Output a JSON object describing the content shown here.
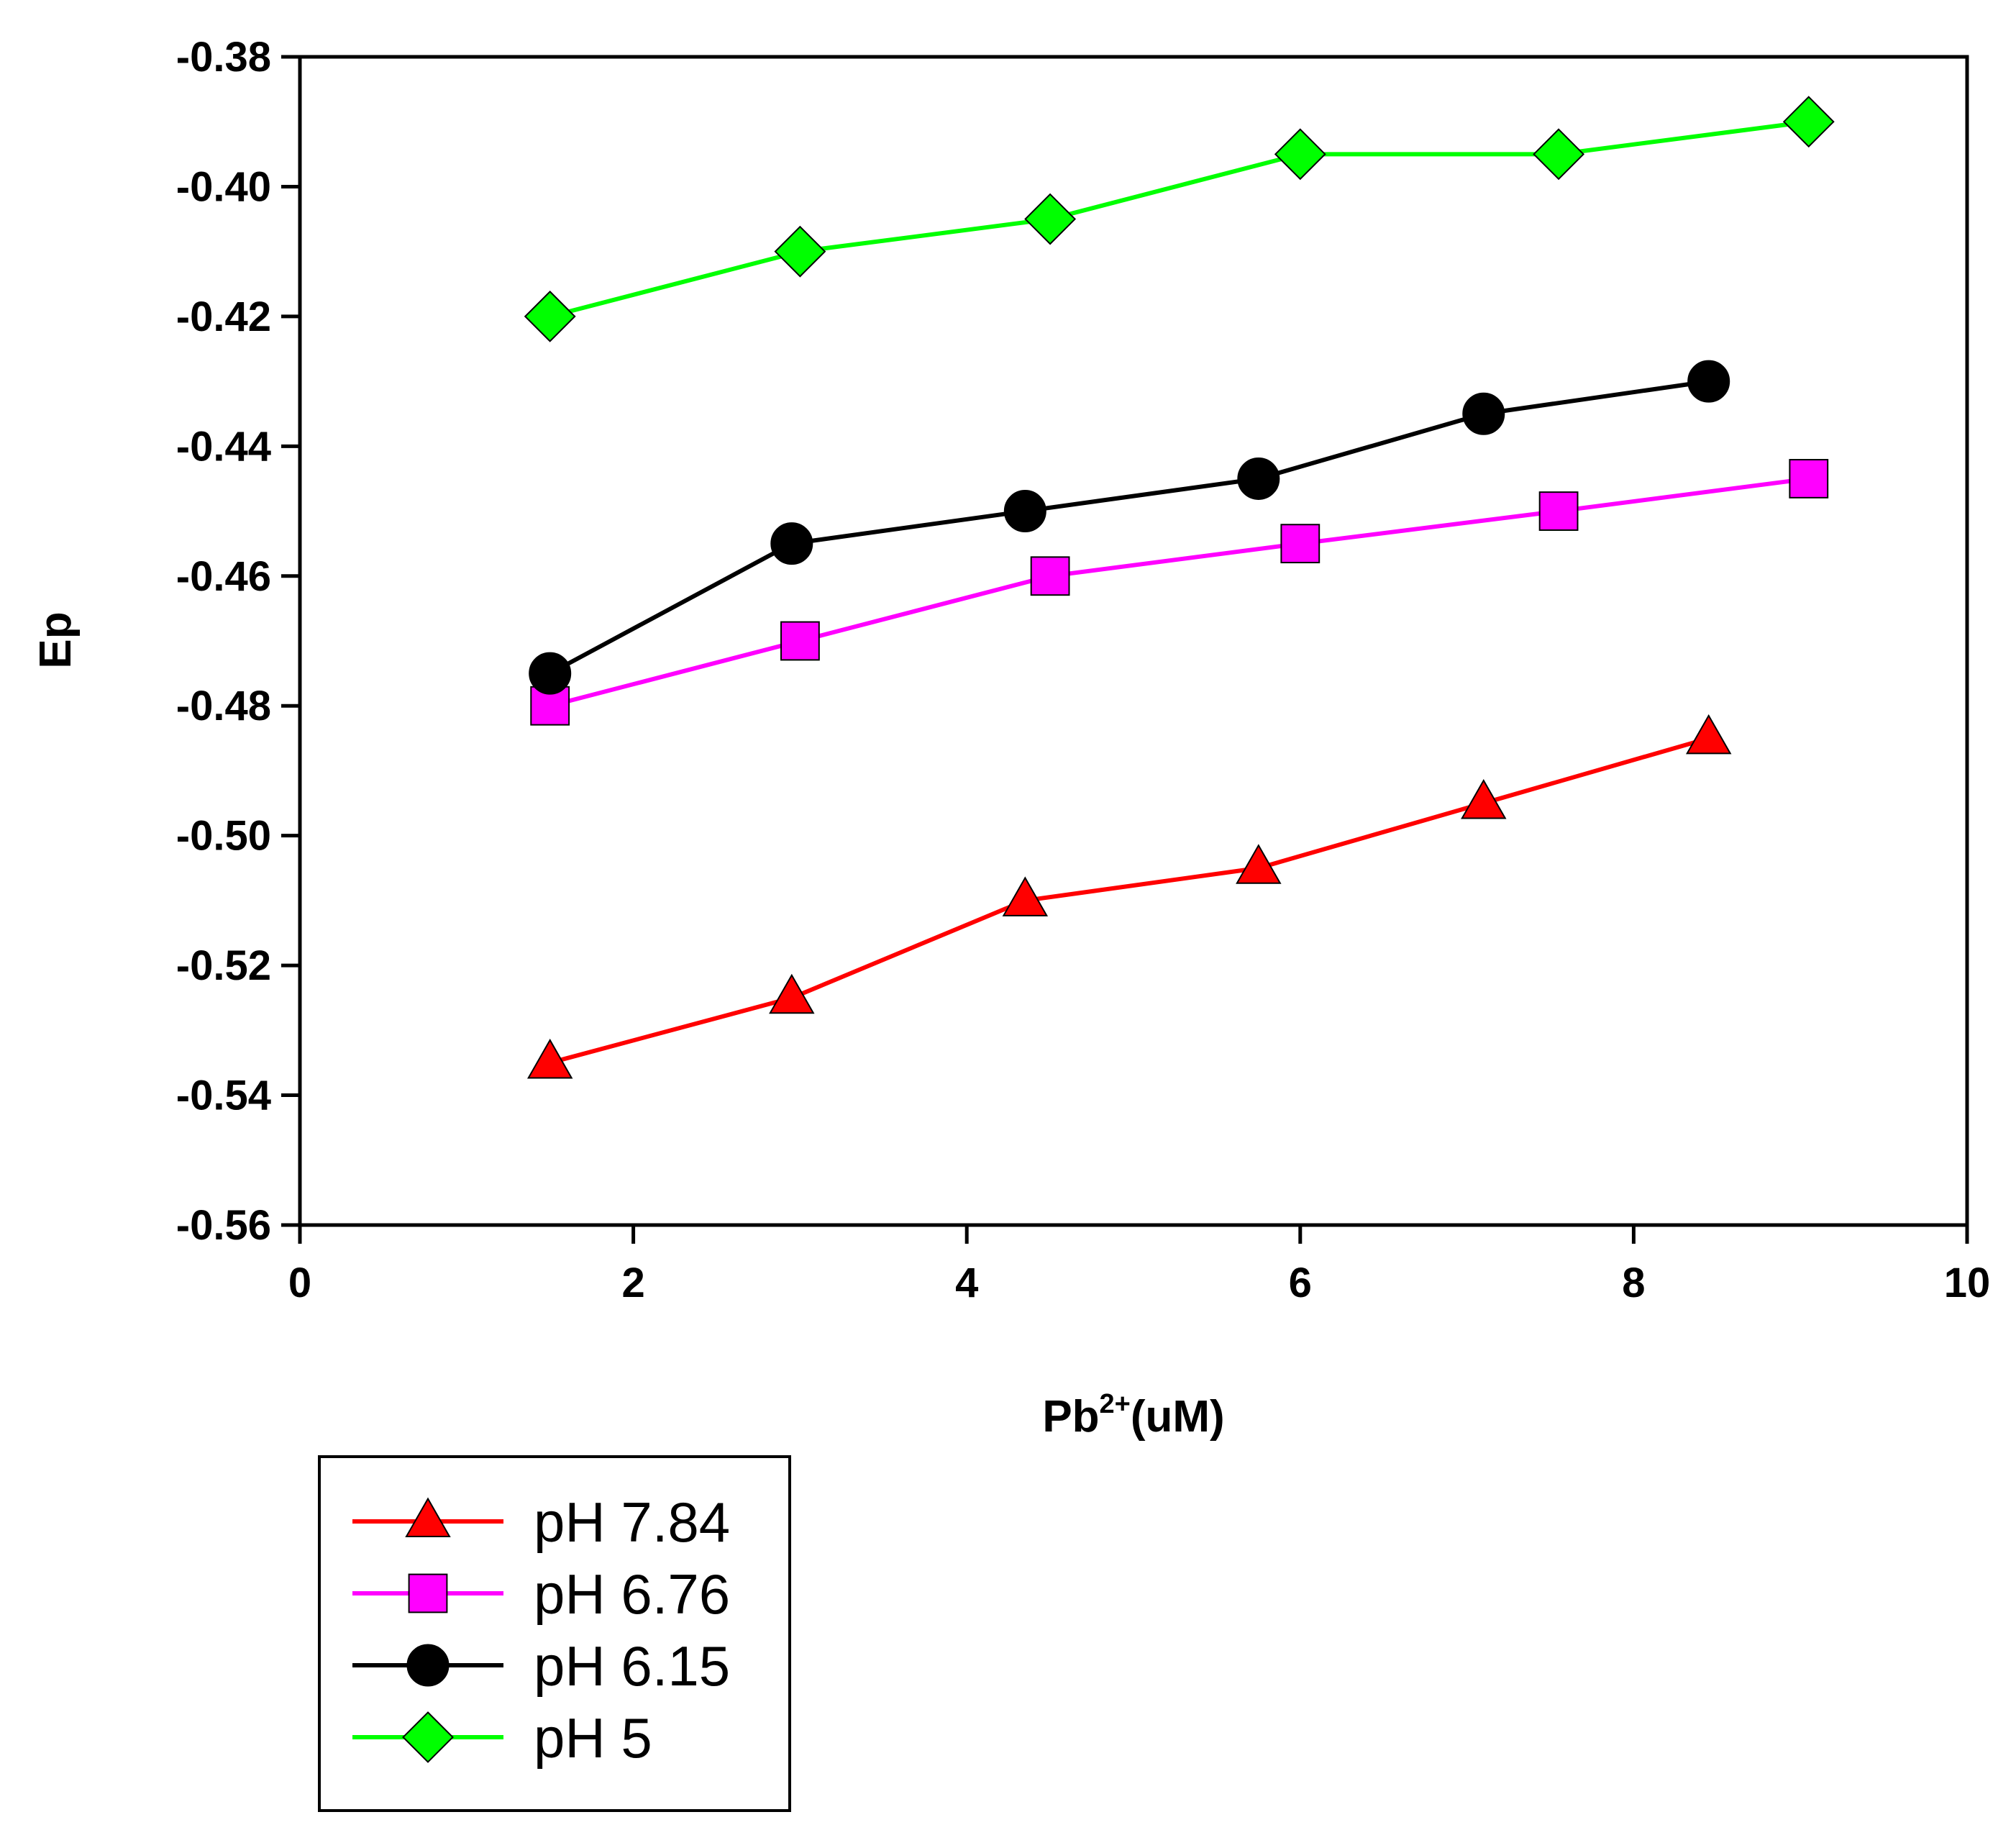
{
  "chart_data": {
    "type": "line",
    "title": "",
    "xlabel": {
      "base": "Pb",
      "sup": "2+",
      "suffix": "(uM)"
    },
    "ylabel": "Ep",
    "xlim": [
      0,
      10
    ],
    "ylim": [
      -0.56,
      -0.38
    ],
    "xticks": [
      0,
      2,
      4,
      6,
      8,
      10
    ],
    "xtick_labels": [
      "0",
      "2",
      "4",
      "6",
      "8",
      "10"
    ],
    "yticks": [
      -0.38,
      -0.4,
      -0.42,
      -0.44,
      -0.46,
      -0.48,
      -0.5,
      -0.52,
      -0.54,
      -0.56
    ],
    "ytick_labels": [
      "-0.38",
      "-0.40",
      "-0.42",
      "-0.44",
      "-0.46",
      "-0.48",
      "-0.50",
      "-0.52",
      "-0.54",
      "-0.56"
    ],
    "grid": false,
    "legend_position": "bottom-left, below plot",
    "series": [
      {
        "name": "pH 7.84",
        "color": "#ff0000",
        "marker": "triangle",
        "x": [
          1.5,
          2.95,
          4.35,
          5.75,
          7.1,
          8.45
        ],
        "y": [
          -0.535,
          -0.525,
          -0.51,
          -0.505,
          -0.495,
          -0.485
        ]
      },
      {
        "name": "pH 6.76",
        "color": "#ff00ff",
        "marker": "square",
        "x": [
          1.5,
          3.0,
          4.5,
          6.0,
          7.55,
          9.05
        ],
        "y": [
          -0.48,
          -0.47,
          -0.46,
          -0.455,
          -0.45,
          -0.445
        ]
      },
      {
        "name": "pH 6.15",
        "color": "#000000",
        "marker": "circle",
        "x": [
          1.5,
          2.95,
          4.35,
          5.75,
          7.1,
          8.45
        ],
        "y": [
          -0.475,
          -0.455,
          -0.45,
          -0.445,
          -0.435,
          -0.43
        ]
      },
      {
        "name": "pH 5",
        "color": "#00ff00",
        "marker": "diamond",
        "x": [
          1.5,
          3.0,
          4.5,
          6.0,
          7.55,
          9.05
        ],
        "y": [
          -0.42,
          -0.41,
          -0.405,
          -0.395,
          -0.395,
          -0.39
        ]
      }
    ]
  }
}
